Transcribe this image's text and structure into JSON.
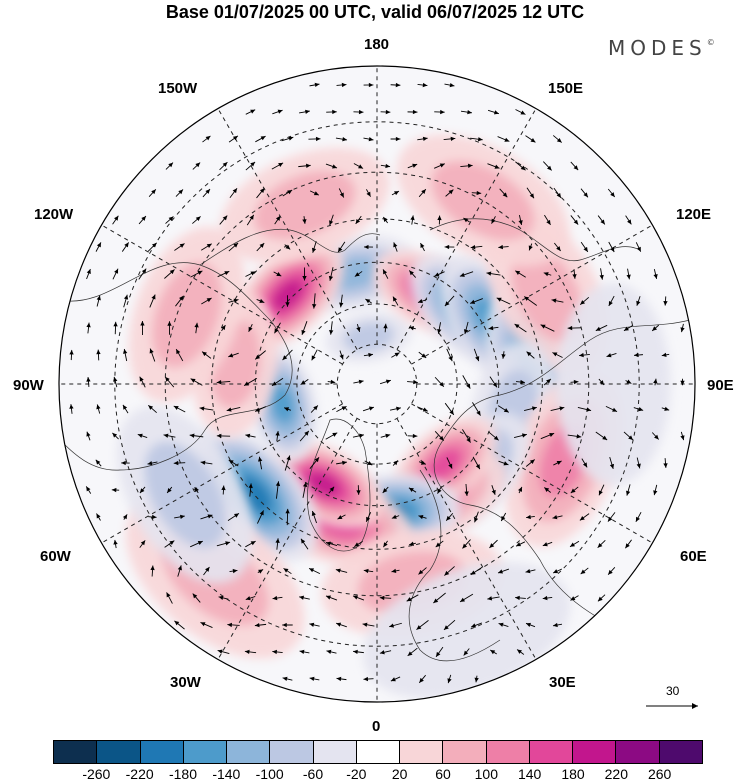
{
  "title": "Base 01/07/2025 00 UTC, valid 06/07/2025 12 UTC",
  "brand": "MODES",
  "brand_mark": "©",
  "longitude_labels": {
    "n180": "180",
    "w150": "150W",
    "e150": "150E",
    "w120": "120W",
    "e120": "120E",
    "w90": "90W",
    "e90": "90E",
    "w60": "60W",
    "e60": "60E",
    "w30": "30W",
    "e30": "30E",
    "s0": "0"
  },
  "reference_vector": "30",
  "colorbar": {
    "ticks": [
      "-260",
      "-220",
      "-180",
      "-140",
      "-100",
      "-60",
      "-20",
      "20",
      "60",
      "100",
      "140",
      "180",
      "220",
      "260"
    ],
    "colors": [
      "#0d2f4f",
      "#0b5587",
      "#1f78b4",
      "#4d9bcb",
      "#8db5da",
      "#bcc8e3",
      "#e4e4f0",
      "#ffffff",
      "#f8d6d8",
      "#f3aebb",
      "#ee7fa7",
      "#e2479a",
      "#c2168d",
      "#8c0a83",
      "#4e0a6d"
    ]
  },
  "anomaly_blobs": [
    {
      "lon": -168,
      "lat": 62,
      "value": -120
    },
    {
      "lon": -135,
      "lat": 59,
      "value": 200
    },
    {
      "lon": -170,
      "lat": 78,
      "value": -60
    },
    {
      "lon": 150,
      "lat": 64,
      "value": 140
    },
    {
      "lon": 132,
      "lat": 62,
      "value": -140
    },
    {
      "lon": 120,
      "lat": 58,
      "value": -140
    },
    {
      "lon": 100,
      "lat": 52,
      "value": -140
    },
    {
      "lon": 118,
      "lat": 44,
      "value": 60
    },
    {
      "lon": 78,
      "lat": 56,
      "value": -60
    },
    {
      "lon": 68,
      "lat": 42,
      "value": 100
    },
    {
      "lon": 48,
      "lat": 58,
      "value": -100
    },
    {
      "lon": 30,
      "lat": 58,
      "value": 100
    },
    {
      "lon": 40,
      "lat": 64,
      "value": 140
    },
    {
      "lon": 6,
      "lat": 58,
      "value": -180
    },
    {
      "lon": -15,
      "lat": 55,
      "value": 140
    },
    {
      "lon": -28,
      "lat": 62,
      "value": 180
    },
    {
      "lon": -48,
      "lat": 50,
      "value": -180
    },
    {
      "lon": -78,
      "lat": 66,
      "value": -160
    },
    {
      "lon": -98,
      "lat": 55,
      "value": 60
    },
    {
      "lon": -110,
      "lat": 42,
      "value": 60
    },
    {
      "lon": -158,
      "lat": 44,
      "value": 60
    },
    {
      "lon": 150,
      "lat": 40,
      "value": 60
    },
    {
      "lon": 10,
      "lat": 42,
      "value": 60
    },
    {
      "lon": -40,
      "lat": 32,
      "value": 60
    },
    {
      "lon": -60,
      "lat": 38,
      "value": -60
    },
    {
      "lon": 90,
      "lat": 35,
      "value": -20
    },
    {
      "lon": 20,
      "lat": 30,
      "value": -20
    }
  ]
}
